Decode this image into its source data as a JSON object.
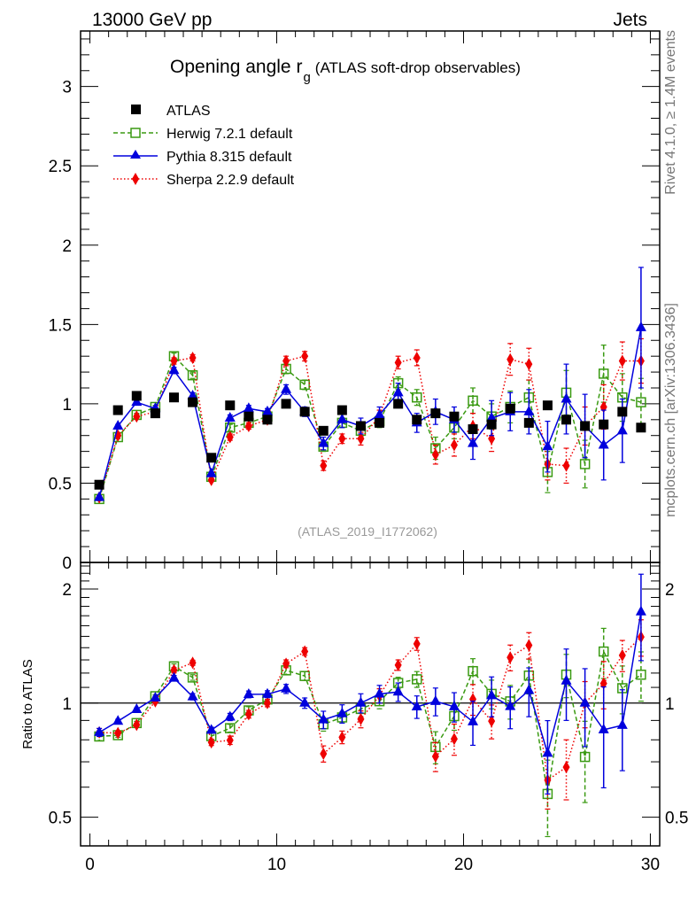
{
  "header": {
    "left": "13000 GeV pp",
    "right": "Jets"
  },
  "side_labels": {
    "rivet": "Rivet 4.1.0, ≥ 1.4M events",
    "mcplots": "mcplots.cern.ch [arXiv:1306.3436]"
  },
  "chart_data": {
    "type": "scatter",
    "title": "Opening angle r",
    "title_subscript": "g",
    "title_suffix": "(ATLAS soft-drop observables)",
    "watermark": "(ATLAS_2019_I1772062)",
    "xlabel": "",
    "ylabel": "",
    "ratio_ylabel": "Ratio to ATLAS",
    "xlim": [
      -0.5,
      30.5
    ],
    "ylim": [
      0,
      3.35
    ],
    "ratio_ylim": [
      0.42,
      2.35
    ],
    "ratio_scale": "log",
    "x_ticks": [
      "0",
      "10",
      "20",
      "30"
    ],
    "y_ticks": [
      "0",
      "0.5",
      "1",
      "1.5",
      "2",
      "2.5",
      "3"
    ],
    "ratio_y_ticks": [
      "0.5",
      "1",
      "2"
    ],
    "legend_position": "top-left",
    "x": [
      0.5,
      1.5,
      2.5,
      3.5,
      4.5,
      5.5,
      6.5,
      7.5,
      8.5,
      9.5,
      10.5,
      11.5,
      12.5,
      13.5,
      14.5,
      15.5,
      16.5,
      17.5,
      18.5,
      19.5,
      20.5,
      21.5,
      22.5,
      23.5,
      24.5,
      25.5,
      26.5,
      27.5,
      28.5,
      29.5
    ],
    "series": [
      {
        "name": "ATLAS",
        "style": "data",
        "color": "#000000",
        "values": [
          0.49,
          0.96,
          1.05,
          0.94,
          1.04,
          1.01,
          0.66,
          0.99,
          0.92,
          0.9,
          1.0,
          0.95,
          0.83,
          0.96,
          0.86,
          0.88,
          1.0,
          0.9,
          0.94,
          0.92,
          0.84,
          0.87,
          0.97,
          0.88,
          0.99,
          0.9,
          0.86,
          0.87,
          0.95,
          0.85
        ],
        "errors": [
          0,
          0,
          0,
          0,
          0,
          0,
          0,
          0,
          0,
          0,
          0,
          0,
          0,
          0,
          0,
          0,
          0,
          0,
          0,
          0,
          0,
          0,
          0,
          0,
          0,
          0,
          0,
          0,
          0,
          0
        ]
      },
      {
        "name": "Herwig 7.2.1 default",
        "style": "dashed-open-square",
        "color": "#3a9a12",
        "values": [
          0.4,
          0.79,
          0.93,
          0.98,
          1.3,
          1.18,
          0.54,
          0.85,
          0.88,
          0.92,
          1.22,
          1.12,
          0.73,
          0.88,
          0.83,
          0.89,
          1.13,
          1.04,
          0.72,
          0.85,
          1.02,
          0.92,
          0.98,
          1.04,
          0.57,
          1.07,
          0.62,
          1.19,
          1.04,
          1.01
        ],
        "errors": [
          0.01,
          0.01,
          0.01,
          0.01,
          0.02,
          0.02,
          0.01,
          0.02,
          0.02,
          0.02,
          0.03,
          0.03,
          0.03,
          0.03,
          0.04,
          0.04,
          0.04,
          0.05,
          0.07,
          0.07,
          0.08,
          0.08,
          0.1,
          0.11,
          0.13,
          0.14,
          0.15,
          0.18,
          0.15,
          0.15
        ]
      },
      {
        "name": "Pythia 8.315 default",
        "style": "solid-triangle",
        "color": "#0000dd",
        "values": [
          0.41,
          0.86,
          1.01,
          0.97,
          1.21,
          1.05,
          0.56,
          0.91,
          0.97,
          0.95,
          1.09,
          0.95,
          0.75,
          0.9,
          0.86,
          0.93,
          1.07,
          0.88,
          0.95,
          0.9,
          0.75,
          0.91,
          0.95,
          0.95,
          0.73,
          1.03,
          0.86,
          0.74,
          0.83,
          1.48
        ],
        "errors": [
          0.01,
          0.01,
          0.01,
          0.01,
          0.02,
          0.02,
          0.01,
          0.02,
          0.02,
          0.02,
          0.03,
          0.03,
          0.04,
          0.05,
          0.05,
          0.05,
          0.06,
          0.06,
          0.08,
          0.08,
          0.1,
          0.11,
          0.12,
          0.14,
          0.16,
          0.22,
          0.2,
          0.22,
          0.2,
          0.38
        ]
      },
      {
        "name": "Sherpa 2.2.9 default",
        "style": "dotted-diamond",
        "color": "#ee0000",
        "values": [
          0.41,
          0.8,
          0.92,
          0.95,
          1.27,
          1.29,
          0.52,
          0.79,
          0.86,
          0.9,
          1.27,
          1.3,
          0.61,
          0.78,
          0.78,
          0.92,
          1.26,
          1.29,
          0.68,
          0.74,
          0.86,
          0.78,
          1.28,
          1.25,
          0.62,
          0.61,
          0.86,
          0.98,
          1.27,
          1.27
        ],
        "errors": [
          0.01,
          0.01,
          0.01,
          0.01,
          0.02,
          0.02,
          0.01,
          0.02,
          0.02,
          0.02,
          0.03,
          0.03,
          0.03,
          0.03,
          0.04,
          0.04,
          0.04,
          0.05,
          0.06,
          0.07,
          0.08,
          0.08,
          0.1,
          0.1,
          0.1,
          0.11,
          0.12,
          0.14,
          0.12,
          0.14
        ]
      }
    ]
  }
}
